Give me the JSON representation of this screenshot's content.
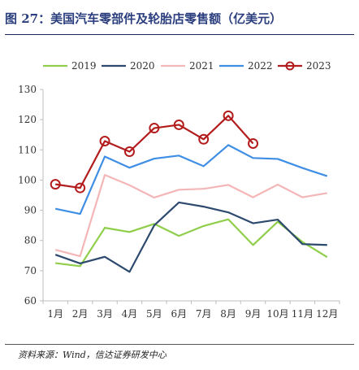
{
  "figure": {
    "title": "图 27：美国汽车零部件及轮胎店零售额（亿美元）",
    "source": "资料来源：Wind，信达证券研发中心"
  },
  "chart_data": {
    "type": "line",
    "categories": [
      "1月",
      "2月",
      "3月",
      "4月",
      "5月",
      "6月",
      "7月",
      "8月",
      "9月",
      "10月",
      "11月",
      "12月"
    ],
    "ylim": [
      60,
      130
    ],
    "yticks": [
      60,
      70,
      80,
      90,
      100,
      110,
      120,
      130
    ],
    "grid": false,
    "legend": "top",
    "series": [
      {
        "name": "2019",
        "color": "#8fce4a",
        "marker": "none",
        "values": [
          72.5,
          71.5,
          84.2,
          82.8,
          85.5,
          81.5,
          84.8,
          87,
          78.5,
          86.2,
          79.5,
          74.5
        ]
      },
      {
        "name": "2020",
        "color": "#2d4a6e",
        "marker": "none",
        "values": [
          75.3,
          72.4,
          74.6,
          69.6,
          85.0,
          92.6,
          91.2,
          89.3,
          85.7,
          86.9,
          78.8,
          78.5
        ]
      },
      {
        "name": "2021",
        "color": "#f4b6b6",
        "marker": "none",
        "values": [
          76.9,
          74.8,
          101.7,
          98.3,
          94.2,
          96.8,
          97.1,
          98.4,
          94.3,
          98.5,
          94.3,
          95.7
        ]
      },
      {
        "name": "2022",
        "color": "#3f8ee6",
        "marker": "none",
        "values": [
          90.5,
          88.8,
          107.8,
          104.1,
          107.1,
          108.1,
          104.6,
          111.6,
          107.3,
          107.0,
          104.0,
          101.3
        ]
      },
      {
        "name": "2023",
        "color": "#b31c1c",
        "marker": "circle",
        "values": [
          98.6,
          97.4,
          112.9,
          109.4,
          117.2,
          118.3,
          113.5,
          121.3,
          112.1,
          null,
          null,
          null
        ]
      }
    ]
  }
}
